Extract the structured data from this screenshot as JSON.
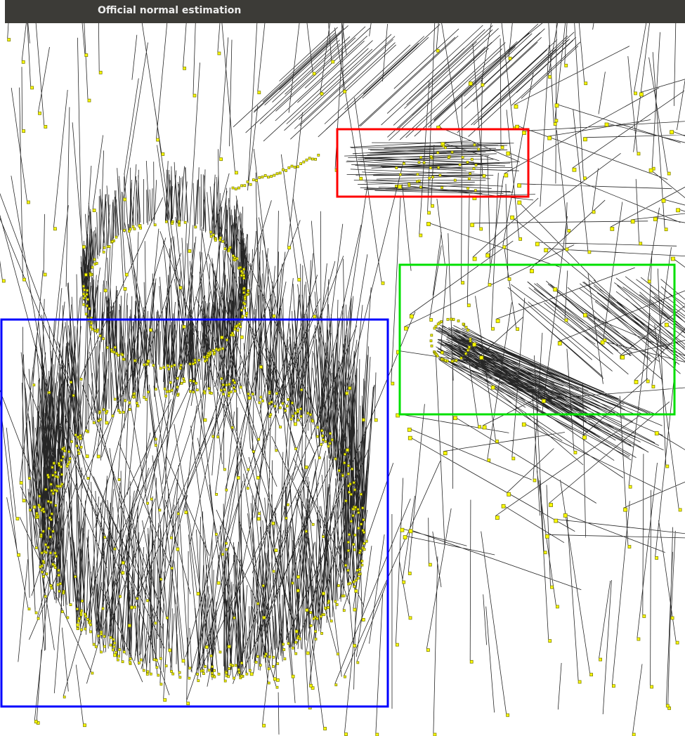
{
  "window": {
    "title": "Official normal estimation"
  },
  "viewer": {
    "background_color": "#ffffff",
    "normal_line_color": "#000000",
    "point_color": "#ffff00",
    "point_outline_color": "#808000",
    "annotations": [
      {
        "name": "red-highlight-box",
        "color": "#ff0000"
      },
      {
        "name": "green-highlight-box",
        "color": "#00e000"
      },
      {
        "name": "blue-highlight-box",
        "color": "#0000ff"
      }
    ]
  }
}
